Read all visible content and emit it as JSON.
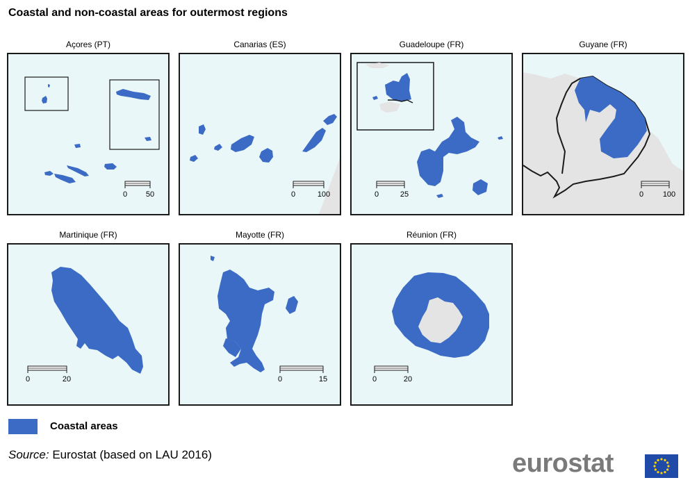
{
  "title": "Coastal and non-coastal areas for outermost regions",
  "colors": {
    "coastal": "#3b6bc4",
    "sea": "#eaf7f8",
    "other_land": "#e4e4e4",
    "frame": "#1a1a1a"
  },
  "maps": [
    {
      "label": "Açores (PT)",
      "scale": {
        "start": "0",
        "end": "50"
      }
    },
    {
      "label": "Canarias (ES)",
      "scale": {
        "start": "0",
        "end": "100"
      }
    },
    {
      "label": "Guadeloupe (FR)",
      "scale": {
        "start": "0",
        "end": "25"
      }
    },
    {
      "label": "Guyane (FR)",
      "scale": {
        "start": "0",
        "end": "100"
      }
    },
    {
      "label": "Martinique (FR)",
      "scale": {
        "start": "0",
        "end": "20"
      }
    },
    {
      "label": "Mayotte (FR)",
      "scale": {
        "start": "0",
        "end": "15"
      }
    },
    {
      "label": "Réunion (FR)",
      "scale": {
        "start": "0",
        "end": "20"
      }
    }
  ],
  "legend": {
    "label": "Coastal areas"
  },
  "source": {
    "prefix": "Source:",
    "text": " Eurostat (based on LAU 2016)"
  },
  "logo": {
    "text": "eurostat",
    "flag_icon": "eu-flag-icon"
  }
}
